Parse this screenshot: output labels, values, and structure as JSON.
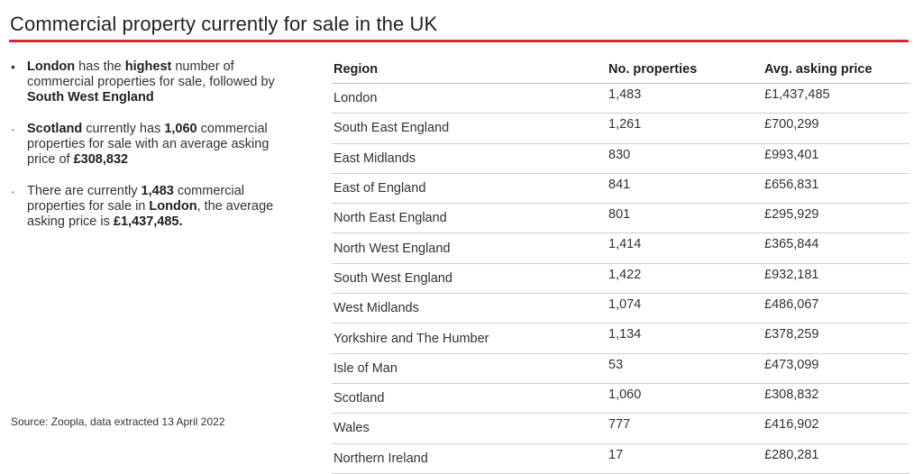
{
  "title": "Commercial property currently for sale in the UK",
  "bullets": [
    {
      "parts": [
        {
          "t": "London",
          "b": true
        },
        {
          "t": " has the ",
          "b": false
        },
        {
          "t": "highest",
          "b": true
        },
        {
          "t": " number of commercial properties for sale, followed by ",
          "b": false
        },
        {
          "t": "South West England",
          "b": true
        }
      ]
    },
    {
      "parts": [
        {
          "t": "Scotland",
          "b": true
        },
        {
          "t": " currently has ",
          "b": false
        },
        {
          "t": "1,060",
          "b": true
        },
        {
          "t": " commercial properties for sale with an average asking price of ",
          "b": false
        },
        {
          "t": "£308,832",
          "b": true
        }
      ]
    },
    {
      "parts": [
        {
          "t": "There are currently ",
          "b": false
        },
        {
          "t": "1,483",
          "b": true
        },
        {
          "t": " commercial properties for sale in ",
          "b": false
        },
        {
          "t": "London",
          "b": true
        },
        {
          "t": ", the average asking price is ",
          "b": false
        },
        {
          "t": "£1,437,485.",
          "b": true
        }
      ]
    }
  ],
  "source": "Source: Zoopla, data extracted 13 April 2022",
  "table": {
    "headers": [
      "Region",
      "No. properties",
      "Avg. asking price"
    ],
    "rows": [
      [
        "London",
        "1,483",
        "£1,437,485"
      ],
      [
        "South East England",
        "1,261",
        "£700,299"
      ],
      [
        "East Midlands",
        "830",
        "£993,401"
      ],
      [
        "East of England",
        "841",
        "£656,831"
      ],
      [
        "North East England",
        "801",
        "£295,929"
      ],
      [
        "North West England",
        "1,414",
        "£365,844"
      ],
      [
        "South West England",
        "1,422",
        "£932,181"
      ],
      [
        "West Midlands",
        "1,074",
        "£486,067"
      ],
      [
        "Yorkshire and The Humber",
        "1,134",
        "£378,259"
      ],
      [
        "Isle of Man",
        "53",
        "£473,099"
      ],
      [
        "Scotland",
        "1,060",
        "£308,832"
      ],
      [
        "Wales",
        "777",
        "£416,902"
      ],
      [
        "Northern Ireland",
        "17",
        "£280,281"
      ]
    ]
  },
  "colors": {
    "accent_rule": "#d62631",
    "text": "#333333"
  }
}
